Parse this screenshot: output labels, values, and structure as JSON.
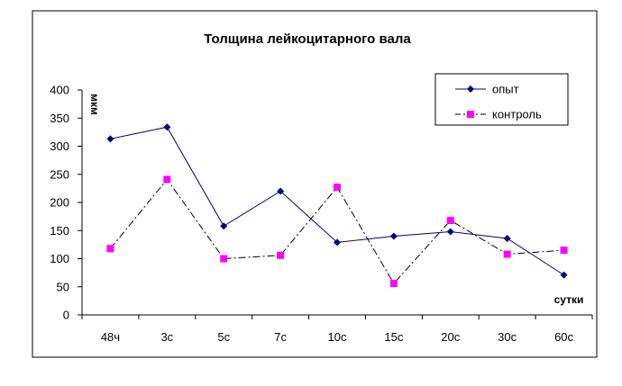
{
  "chart_data": {
    "type": "line",
    "title": "Толщина лейкоцитарного  вала",
    "ylabel": "мкм",
    "xlabel": "сутки",
    "categories": [
      "48ч",
      "3с",
      "5с",
      "7с",
      "10с",
      "15с",
      "20с",
      "30с",
      "60с"
    ],
    "ylim": [
      0,
      400
    ],
    "yticks": [
      0,
      50,
      100,
      150,
      200,
      250,
      300,
      350,
      400
    ],
    "grid": false,
    "legend_position": "top-right",
    "series": [
      {
        "name": "опыт",
        "color": "#000080",
        "marker": "diamond",
        "line_style": "solid",
        "values": [
          313,
          334,
          158,
          220,
          129,
          140,
          148,
          136,
          71
        ]
      },
      {
        "name": "контроль",
        "color": "#FF00FF",
        "line_color": "#000000",
        "marker": "square",
        "line_style": "dash-dot",
        "values": [
          118,
          241,
          100,
          106,
          227,
          56,
          168,
          108,
          115
        ]
      }
    ]
  }
}
